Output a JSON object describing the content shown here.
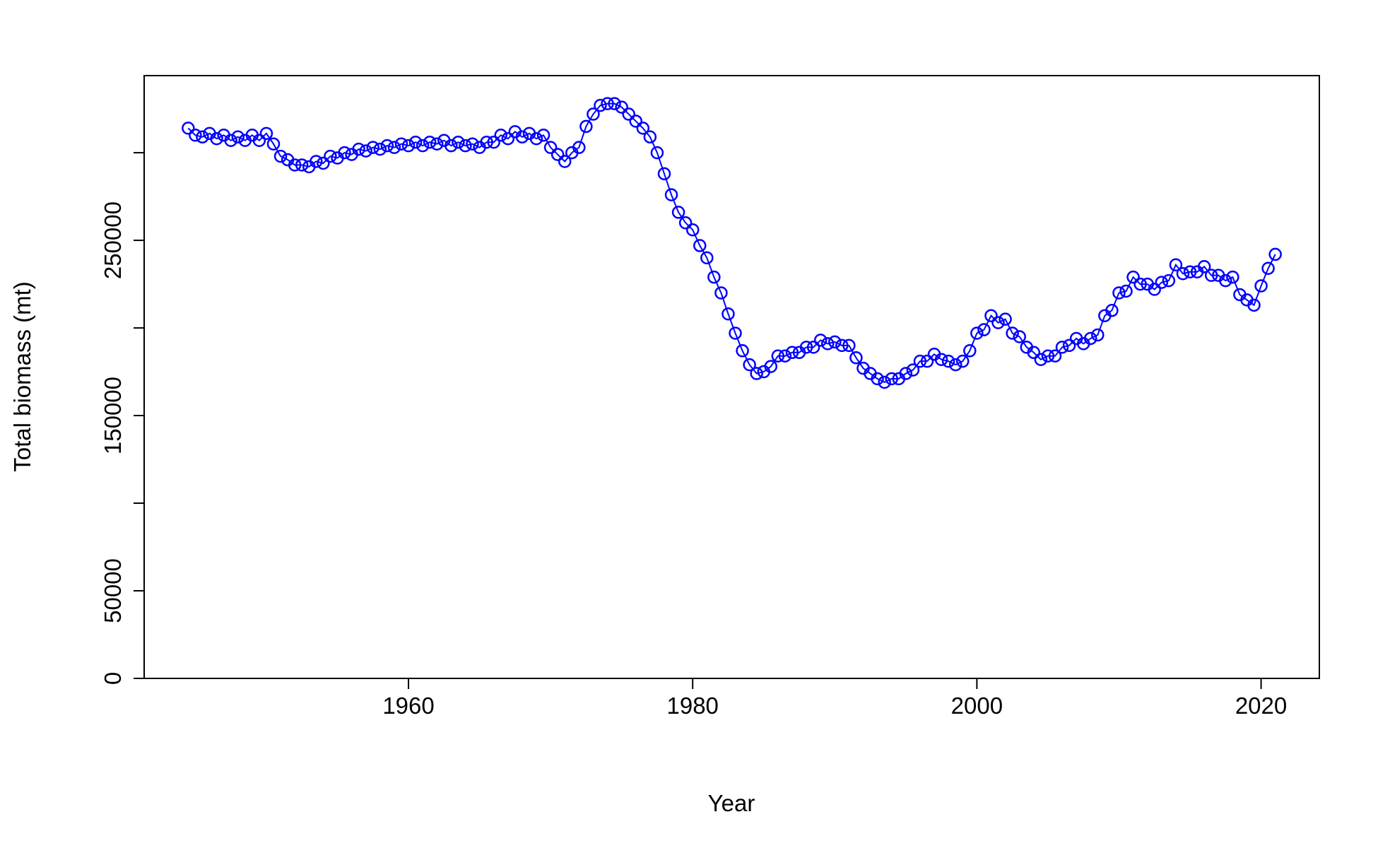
{
  "chart_data": {
    "type": "line_points",
    "x_label": "Year",
    "y_label": "Total biomass (mt)",
    "color": "#0000ff",
    "xlim": [
      1941.4,
      2024.1
    ],
    "xticks": [
      1960,
      1980,
      2000,
      2020
    ],
    "ylim": [
      0,
      344000
    ],
    "yticks": [
      0,
      50000,
      150000,
      250000
    ],
    "yticks_unlabeled": [
      100000,
      200000,
      300000
    ],
    "x": [
      1944.5,
      1945,
      1945.5,
      1946,
      1946.5,
      1947,
      1947.5,
      1948,
      1948.5,
      1949,
      1949.5,
      1950,
      1950.5,
      1951,
      1951.5,
      1952,
      1952.5,
      1953,
      1953.5,
      1954,
      1954.5,
      1955,
      1955.5,
      1956,
      1956.5,
      1957,
      1957.5,
      1958,
      1958.5,
      1959,
      1959.5,
      1960,
      1960.5,
      1961,
      1961.5,
      1962,
      1962.5,
      1963,
      1963.5,
      1964,
      1964.5,
      1965,
      1965.5,
      1966,
      1966.5,
      1967,
      1967.5,
      1968,
      1968.5,
      1969,
      1969.5,
      1970,
      1970.5,
      1971,
      1971.5,
      1972,
      1972.5,
      1973,
      1973.5,
      1974,
      1974.5,
      1975,
      1975.5,
      1976,
      1976.5,
      1977,
      1977.5,
      1978,
      1978.5,
      1979,
      1979.5,
      1980,
      1980.5,
      1981,
      1981.5,
      1982,
      1982.5,
      1983,
      1983.5,
      1984,
      1984.5,
      1985,
      1985.5,
      1986,
      1986.5,
      1987,
      1987.5,
      1988,
      1988.5,
      1989,
      1989.5,
      1990,
      1990.5,
      1991,
      1991.5,
      1992,
      1992.5,
      1993,
      1993.5,
      1994,
      1994.5,
      1995,
      1995.5,
      1996,
      1996.5,
      1997,
      1997.5,
      1998,
      1998.5,
      1999,
      1999.5,
      2000,
      2000.5,
      2001,
      2001.5,
      2002,
      2002.5,
      2003,
      2003.5,
      2004,
      2004.5,
      2005,
      2005.5,
      2006,
      2006.5,
      2007,
      2007.5,
      2008,
      2008.5,
      2009,
      2009.5,
      2010,
      2010.5,
      2011,
      2011.5,
      2012,
      2012.5,
      2013,
      2013.5,
      2014,
      2014.5,
      2015,
      2015.5,
      2016,
      2016.5,
      2017,
      2017.5,
      2018,
      2018.5,
      2019,
      2019.5,
      2020,
      2020.5,
      2021
    ],
    "values": [
      314000,
      310000,
      309000,
      311000,
      308000,
      310000,
      307000,
      309000,
      307000,
      310000,
      307000,
      311000,
      305000,
      298000,
      296000,
      293000,
      293000,
      292000,
      295000,
      294000,
      298000,
      297000,
      300000,
      299000,
      302000,
      301000,
      303000,
      302000,
      304000,
      303000,
      305000,
      304000,
      306000,
      304000,
      306000,
      305000,
      307000,
      304000,
      306000,
      304000,
      305000,
      303000,
      306000,
      306000,
      310000,
      308000,
      312000,
      309000,
      311000,
      308000,
      310000,
      303000,
      299000,
      295000,
      300000,
      303000,
      315000,
      322000,
      327000,
      328000,
      328000,
      326000,
      322000,
      318000,
      314000,
      309000,
      300000,
      288000,
      276000,
      266000,
      260000,
      256000,
      247000,
      240000,
      229000,
      220000,
      208000,
      197000,
      187000,
      179000,
      174000,
      175000,
      178000,
      184000,
      184000,
      186000,
      186000,
      189000,
      189000,
      193000,
      191000,
      192000,
      190000,
      190000,
      183000,
      177000,
      174000,
      171000,
      169000,
      171000,
      171000,
      174000,
      176000,
      181000,
      181000,
      185000,
      182000,
      181000,
      179000,
      181000,
      187000,
      197000,
      199000,
      207000,
      203000,
      205000,
      197000,
      195000,
      189000,
      186000,
      182000,
      184000,
      184000,
      189000,
      190000,
      194000,
      191000,
      194000,
      196000,
      207000,
      210000,
      220000,
      221000,
      229000,
      225000,
      225000,
      222000,
      226000,
      227000,
      236000,
      231000,
      232000,
      232000,
      235000,
      230000,
      230000,
      227000,
      229000,
      219000,
      216000,
      213000,
      224000,
      234000,
      242000
    ]
  }
}
